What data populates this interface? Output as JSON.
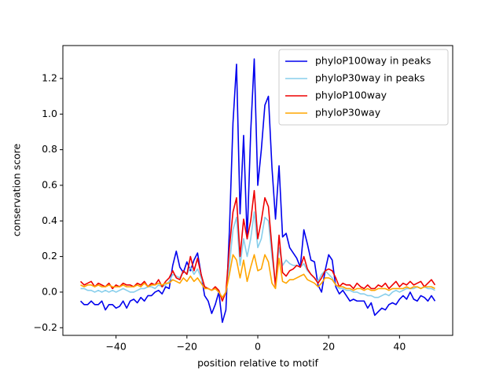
{
  "chart_data": {
    "type": "line",
    "xlabel": "position relative to motif",
    "ylabel": "conservation score",
    "x": [
      -50,
      -49,
      -48,
      -47,
      -46,
      -45,
      -44,
      -43,
      -42,
      -41,
      -40,
      -39,
      -38,
      -37,
      -36,
      -35,
      -34,
      -33,
      -32,
      -31,
      -30,
      -29,
      -28,
      -27,
      -26,
      -25,
      -24,
      -23,
      -22,
      -21,
      -20,
      -19,
      -18,
      -17,
      -16,
      -15,
      -14,
      -13,
      -12,
      -11,
      -10,
      -9,
      -8,
      -7,
      -6,
      -5,
      -4,
      -3,
      -2,
      -1,
      0,
      1,
      2,
      3,
      4,
      5,
      6,
      7,
      8,
      9,
      10,
      11,
      12,
      13,
      14,
      15,
      16,
      17,
      18,
      19,
      20,
      21,
      22,
      23,
      24,
      25,
      26,
      27,
      28,
      29,
      30,
      31,
      32,
      33,
      34,
      35,
      36,
      37,
      38,
      39,
      40,
      41,
      42,
      43,
      44,
      45,
      46,
      47,
      48,
      49,
      50
    ],
    "series": [
      {
        "name": "phyloP100way in peaks",
        "color": "#0000ee",
        "values": [
          -0.05,
          -0.07,
          -0.07,
          -0.05,
          -0.07,
          -0.07,
          -0.05,
          -0.1,
          -0.07,
          -0.07,
          -0.09,
          -0.08,
          -0.05,
          -0.09,
          -0.05,
          -0.04,
          -0.06,
          -0.03,
          -0.05,
          -0.02,
          -0.02,
          0.0,
          0.01,
          -0.01,
          0.03,
          0.02,
          0.15,
          0.23,
          0.14,
          0.11,
          0.17,
          0.12,
          0.18,
          0.22,
          0.1,
          -0.02,
          -0.05,
          -0.12,
          -0.07,
          0.0,
          -0.17,
          -0.1,
          0.35,
          0.95,
          1.28,
          0.44,
          0.88,
          0.3,
          0.9,
          1.31,
          0.6,
          0.8,
          1.05,
          1.1,
          0.7,
          0.41,
          0.71,
          0.31,
          0.33,
          0.25,
          0.22,
          0.19,
          0.14,
          0.35,
          0.27,
          0.18,
          0.17,
          0.04,
          0.0,
          0.12,
          0.21,
          0.18,
          0.03,
          -0.01,
          0.01,
          -0.02,
          -0.05,
          -0.04,
          -0.05,
          -0.05,
          -0.05,
          -0.09,
          -0.06,
          -0.13,
          -0.11,
          -0.09,
          -0.1,
          -0.07,
          -0.06,
          -0.07,
          -0.04,
          -0.02,
          -0.04,
          0.0,
          -0.04,
          -0.05,
          -0.02,
          -0.03,
          -0.05,
          -0.02,
          -0.05
        ]
      },
      {
        "name": "phyloP30way in peaks",
        "color": "#87ceeb",
        "values": [
          0.02,
          0.02,
          0.01,
          0.01,
          0.0,
          0.01,
          0.0,
          0.01,
          0.0,
          0.01,
          0.0,
          0.01,
          0.02,
          0.01,
          0.0,
          0.0,
          0.01,
          0.02,
          0.02,
          0.03,
          0.03,
          0.02,
          0.04,
          0.03,
          0.04,
          0.06,
          0.1,
          0.09,
          0.08,
          0.12,
          0.1,
          0.14,
          0.1,
          0.13,
          0.08,
          0.03,
          0.02,
          0.01,
          0.02,
          0.0,
          -0.03,
          0.0,
          0.15,
          0.35,
          0.42,
          0.15,
          0.3,
          0.2,
          0.3,
          0.45,
          0.25,
          0.3,
          0.42,
          0.4,
          0.2,
          0.05,
          0.25,
          0.15,
          0.18,
          0.16,
          0.15,
          0.15,
          0.14,
          0.16,
          0.12,
          0.1,
          0.08,
          0.06,
          0.1,
          0.12,
          0.1,
          0.08,
          0.04,
          0.02,
          0.02,
          0.01,
          0.01,
          0.0,
          0.0,
          -0.01,
          -0.01,
          -0.02,
          -0.02,
          -0.03,
          -0.03,
          -0.02,
          -0.01,
          -0.02,
          0.0,
          0.01,
          0.0,
          0.01,
          0.02,
          0.02,
          0.02,
          0.03,
          0.02,
          0.03,
          0.02,
          0.02,
          0.01
        ]
      },
      {
        "name": "phyloP100way",
        "color": "#ee0000",
        "values": [
          0.06,
          0.04,
          0.05,
          0.06,
          0.03,
          0.05,
          0.04,
          0.03,
          0.05,
          0.02,
          0.04,
          0.03,
          0.05,
          0.04,
          0.04,
          0.03,
          0.05,
          0.04,
          0.06,
          0.03,
          0.05,
          0.04,
          0.07,
          0.03,
          0.06,
          0.08,
          0.12,
          0.08,
          0.07,
          0.12,
          0.1,
          0.2,
          0.12,
          0.19,
          0.1,
          0.03,
          0.02,
          0.01,
          0.03,
          0.01,
          -0.05,
          0.0,
          0.25,
          0.45,
          0.53,
          0.2,
          0.41,
          0.3,
          0.4,
          0.57,
          0.3,
          0.4,
          0.53,
          0.48,
          0.25,
          0.03,
          0.32,
          0.11,
          0.09,
          0.12,
          0.13,
          0.15,
          0.14,
          0.2,
          0.13,
          0.1,
          0.08,
          0.05,
          0.08,
          0.12,
          0.13,
          0.12,
          0.08,
          0.03,
          0.05,
          0.04,
          0.04,
          0.02,
          0.05,
          0.03,
          0.02,
          0.04,
          0.02,
          0.02,
          0.04,
          0.03,
          0.05,
          0.02,
          0.04,
          0.06,
          0.03,
          0.05,
          0.04,
          0.06,
          0.04,
          0.05,
          0.06,
          0.03,
          0.05,
          0.07,
          0.04
        ]
      },
      {
        "name": "phyloP30way",
        "color": "#ffa500",
        "values": [
          0.04,
          0.03,
          0.04,
          0.04,
          0.03,
          0.04,
          0.03,
          0.03,
          0.04,
          0.03,
          0.03,
          0.03,
          0.04,
          0.03,
          0.03,
          0.03,
          0.04,
          0.03,
          0.05,
          0.03,
          0.04,
          0.04,
          0.05,
          0.04,
          0.05,
          0.05,
          0.07,
          0.06,
          0.05,
          0.08,
          0.06,
          0.09,
          0.06,
          0.08,
          0.05,
          0.02,
          0.02,
          0.01,
          0.02,
          0.0,
          -0.03,
          0.0,
          0.1,
          0.21,
          0.18,
          0.08,
          0.18,
          0.06,
          0.14,
          0.21,
          0.12,
          0.13,
          0.21,
          0.17,
          0.05,
          0.02,
          0.19,
          0.06,
          0.05,
          0.07,
          0.07,
          0.08,
          0.09,
          0.1,
          0.07,
          0.06,
          0.05,
          0.03,
          0.05,
          0.08,
          0.08,
          0.07,
          0.04,
          0.03,
          0.03,
          0.02,
          0.02,
          0.01,
          0.02,
          0.02,
          0.01,
          0.02,
          0.01,
          0.01,
          0.02,
          0.02,
          0.02,
          0.01,
          0.02,
          0.02,
          0.02,
          0.02,
          0.03,
          0.02,
          0.03,
          0.03,
          0.02,
          0.03,
          0.03,
          0.03,
          0.02
        ]
      }
    ],
    "xlim": [
      -55,
      55
    ],
    "xticks": [
      {
        "value": -40,
        "label": "−40"
      },
      {
        "value": -20,
        "label": "−20"
      },
      0,
      20,
      40
    ],
    "ylim": [
      -0.243,
      1.385
    ],
    "yticks": [
      {
        "value": -0.2,
        "label": "−0.2"
      },
      {
        "value": 0,
        "label": "0.0"
      },
      0.2,
      0.4,
      0.6,
      0.8,
      {
        "value": 1,
        "label": "1.0"
      },
      1.2
    ],
    "legend": "upper right"
  }
}
